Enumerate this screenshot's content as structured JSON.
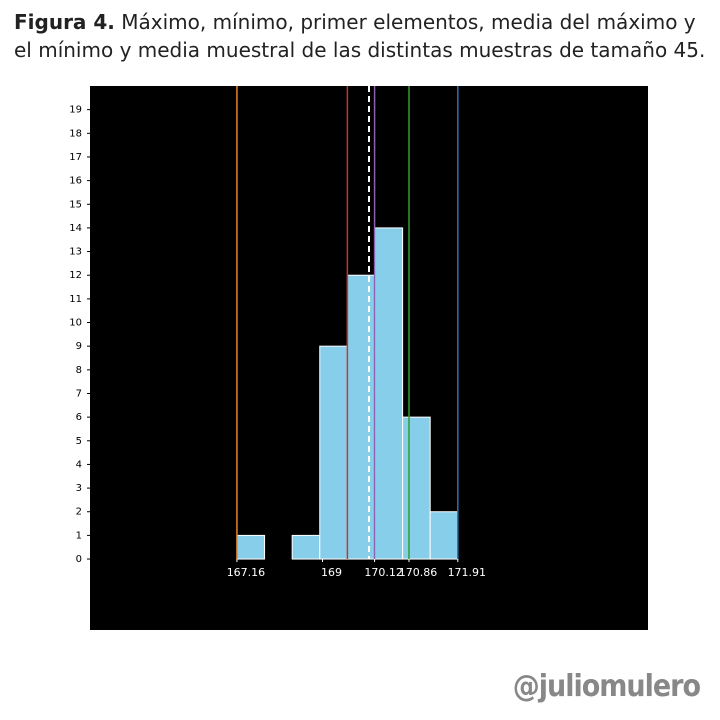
{
  "chart_data": {
    "type": "histogram",
    "figure_label": "Figura 4.",
    "title": "Máximo, mínimo, primer elementos, media del máximo y el mínimo y media muestral de las distintas muestras de tamaño 45.",
    "bins": [
      167.16,
      167.754,
      168.348,
      168.941,
      169.535,
      170.129,
      170.723,
      171.316,
      171.91
    ],
    "values": [
      1,
      0,
      1,
      9,
      12,
      14,
      6,
      2
    ],
    "color": "#87ceeb",
    "vlines": [
      {
        "value": 167.16,
        "color": "#e8822a"
      },
      {
        "value": 169.535,
        "color": "#c0392b"
      },
      {
        "value": 170.0,
        "color": "#ffffff",
        "dashed": true
      },
      {
        "value": 170.12,
        "color": "#8e5fb0"
      },
      {
        "value": 170.86,
        "color": "#2ca02c"
      },
      {
        "value": 171.91,
        "color": "#2f6fa8"
      }
    ],
    "xlim": [
      164,
      176
    ],
    "xticks": [
      167.16,
      169,
      170.12,
      170.86,
      171.91
    ],
    "ylim": [
      -3,
      20
    ],
    "yticks": [
      0,
      1,
      2,
      3,
      4,
      5,
      6,
      7,
      8,
      9,
      10,
      11,
      12,
      13,
      14,
      15,
      16,
      17,
      18,
      19
    ],
    "background": "#000000",
    "watermark": "@juliomulero"
  }
}
